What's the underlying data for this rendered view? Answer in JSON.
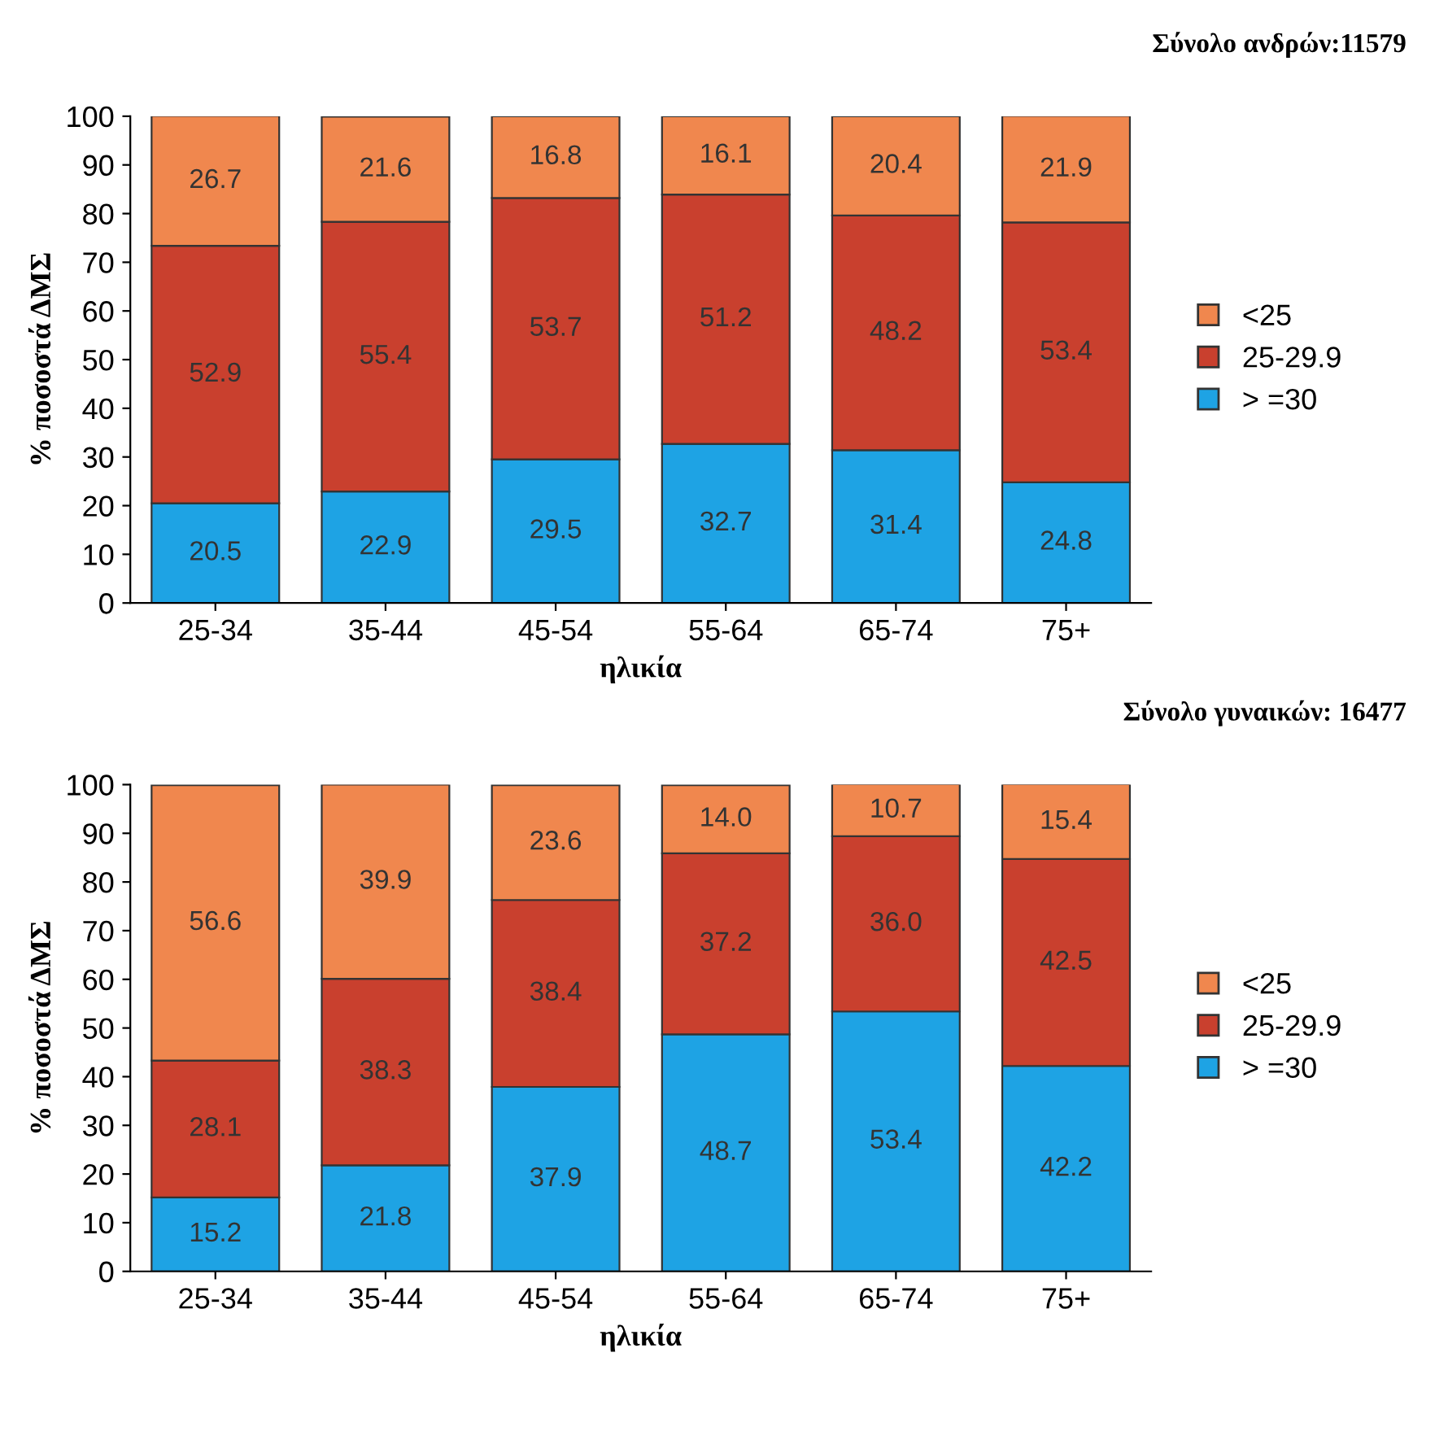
{
  "chart_data": [
    {
      "type": "bar",
      "stacked": true,
      "title": "Σύνολο ανδρών:11579",
      "xlabel": "ηλικία",
      "ylabel": "% ποσοστά ΔΜΣ",
      "categories": [
        "25-34",
        "35-44",
        "45-54",
        "55-64",
        "65-74",
        "75+"
      ],
      "series": [
        {
          "name": "> =30",
          "color": "#1ea3e4",
          "values": [
            20.5,
            22.9,
            29.5,
            32.7,
            31.4,
            24.8
          ]
        },
        {
          "name": "25-29.9",
          "color": "#c9402e",
          "values": [
            52.9,
            55.4,
            53.7,
            51.2,
            48.2,
            53.4
          ]
        },
        {
          "name": "<25",
          "color": "#f0874e",
          "values": [
            26.7,
            21.6,
            16.8,
            16.1,
            20.4,
            21.9
          ]
        }
      ],
      "ylim": [
        0,
        100
      ],
      "yticks": [
        0,
        10,
        20,
        30,
        40,
        50,
        60,
        70,
        80,
        90,
        100
      ],
      "data_labels": true,
      "legend": "right",
      "grid": false
    },
    {
      "type": "bar",
      "stacked": true,
      "title": "Σύνολο γυναικών: 16477",
      "xlabel": "ηλικία",
      "ylabel": "% ποσοστά ΔΜΣ",
      "categories": [
        "25-34",
        "35-44",
        "45-54",
        "55-64",
        "65-74",
        "75+"
      ],
      "series": [
        {
          "name": "> =30",
          "color": "#1ea3e4",
          "values": [
            15.2,
            21.8,
            37.9,
            48.7,
            53.4,
            42.2
          ],
          "value_labels": [
            "15.2",
            "21.8",
            "37.9",
            "48.7",
            "53.4",
            "42.2"
          ]
        },
        {
          "name": "25-29.9",
          "color": "#c9402e",
          "values": [
            28.1,
            38.3,
            38.4,
            37.2,
            36,
            42.5
          ],
          "value_labels": [
            "28.1",
            "38.3",
            "38.4",
            "37.2",
            "36.0",
            "42.5"
          ]
        },
        {
          "name": "<25",
          "color": "#f0874e",
          "values": [
            56.6,
            39.9,
            23.6,
            14,
            10.7,
            15.4
          ],
          "value_labels": [
            "56.6",
            "39.9",
            "23.6",
            "14.0",
            "10.7",
            "15.4"
          ]
        }
      ],
      "ylim": [
        0,
        100
      ],
      "yticks": [
        0,
        10,
        20,
        30,
        40,
        50,
        60,
        70,
        80,
        90,
        100
      ],
      "legend": "right",
      "grid": false
    }
  ]
}
